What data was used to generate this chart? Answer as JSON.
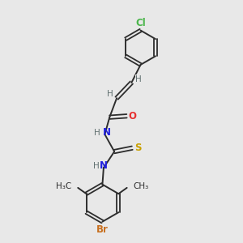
{
  "background_color": "#e8e8e8",
  "bond_color": "#2d2d2d",
  "atom_colors": {
    "Cl": "#4ab54a",
    "O": "#e63030",
    "N": "#2020e0",
    "S": "#c8a000",
    "Br": "#c87020",
    "H": "#607070",
    "C": "#2d2d2d"
  },
  "figsize": [
    3.0,
    3.0
  ],
  "dpi": 100
}
